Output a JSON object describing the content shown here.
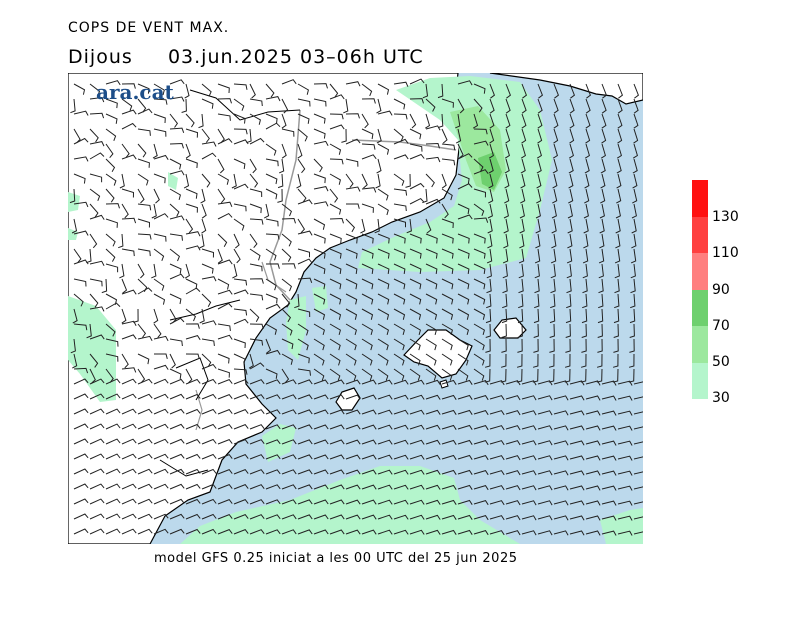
{
  "title": "COPS DE VENT MAX.",
  "subtitle": {
    "day": "Dijous",
    "date": "03.jun.2025",
    "time_range": "03–06h",
    "timezone": "UTC"
  },
  "logo": "ara.cat",
  "footer": "model GFS 0.25 iniciat a les 00 UTC del 25 jun 2025",
  "legend": {
    "labels": [
      "130",
      "110",
      "90",
      "70",
      "50",
      "30"
    ],
    "bands": [
      {
        "from": 30,
        "to": 50,
        "color": "#b4f5cc"
      },
      {
        "from": 50,
        "to": 70,
        "color": "#9ce89e"
      },
      {
        "from": 70,
        "to": 90,
        "color": "#6ed06e"
      },
      {
        "from": 90,
        "to": 110,
        "color": "#ff7f7f"
      },
      {
        "from": 110,
        "to": 130,
        "color": "#ff4040"
      },
      {
        "from": 130,
        "to": 150,
        "color": "#ff1010"
      }
    ]
  },
  "colors": {
    "sea": "#bcd9ec",
    "land": "#ffffff",
    "coast": "#000000",
    "border": "#999999"
  }
}
